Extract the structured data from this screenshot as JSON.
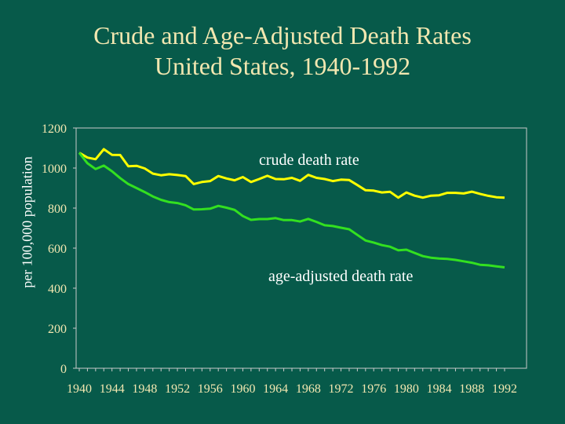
{
  "chart_data": {
    "type": "line",
    "title": "Crude and Age-Adjusted Death Rates",
    "subtitle": "United States, 1940-1992",
    "xlabel": "",
    "ylabel": "per 100,000 population",
    "xlim": [
      1940,
      1992
    ],
    "ylim": [
      0,
      1200
    ],
    "xticks": [
      1940,
      1944,
      1948,
      1952,
      1956,
      1960,
      1964,
      1968,
      1972,
      1976,
      1980,
      1984,
      1988,
      1992
    ],
    "yticks": [
      0,
      200,
      400,
      600,
      800,
      1000,
      1200
    ],
    "grid": false,
    "legend": "none",
    "annotations": [
      {
        "text": "crude death rate",
        "series": "crude death rate"
      },
      {
        "text": "age-adjusted death rate",
        "series": "age-adjusted death rate"
      }
    ],
    "series": [
      {
        "name": "crude death rate",
        "color": "#ffff00",
        "x": [
          1940,
          1941,
          1942,
          1943,
          1944,
          1945,
          1946,
          1947,
          1948,
          1949,
          1950,
          1951,
          1952,
          1953,
          1954,
          1955,
          1956,
          1957,
          1958,
          1959,
          1960,
          1961,
          1962,
          1963,
          1964,
          1965,
          1966,
          1967,
          1968,
          1969,
          1970,
          1971,
          1972,
          1973,
          1974,
          1975,
          1976,
          1977,
          1978,
          1979,
          1980,
          1981,
          1982,
          1983,
          1984,
          1985,
          1986,
          1987,
          1988,
          1989,
          1990,
          1991,
          1992
        ],
        "values": [
          1076,
          1052,
          1044,
          1094,
          1066,
          1065,
          1009,
          1011,
          998,
          972,
          964,
          969,
          965,
          960,
          920,
          930,
          935,
          960,
          948,
          939,
          955,
          930,
          945,
          961,
          945,
          944,
          951,
          936,
          966,
          951,
          945,
          935,
          942,
          940,
          915,
          889,
          887,
          878,
          881,
          852,
          878,
          862,
          852,
          862,
          864,
          876,
          876,
          873,
          882,
          871,
          861,
          854,
          852
        ]
      },
      {
        "name": "age-adjusted death rate",
        "color": "#33e020",
        "x": [
          1940,
          1941,
          1942,
          1943,
          1944,
          1945,
          1946,
          1947,
          1948,
          1949,
          1950,
          1951,
          1952,
          1953,
          1954,
          1955,
          1956,
          1957,
          1958,
          1959,
          1960,
          1961,
          1962,
          1963,
          1964,
          1965,
          1966,
          1967,
          1968,
          1969,
          1970,
          1971,
          1972,
          1973,
          1974,
          1975,
          1976,
          1977,
          1978,
          1979,
          1980,
          1981,
          1982,
          1983,
          1984,
          1985,
          1986,
          1987,
          1988,
          1989,
          1990,
          1991,
          1992
        ],
        "values": [
          1076,
          1024,
          995,
          1012,
          984,
          950,
          920,
          900,
          880,
          858,
          841,
          830,
          825,
          814,
          793,
          794,
          797,
          811,
          802,
          791,
          760,
          741,
          745,
          745,
          750,
          740,
          740,
          733,
          746,
          731,
          714,
          710,
          702,
          694,
          666,
          638,
          628,
          615,
          607,
          589,
          592,
          576,
          560,
          552,
          548,
          546,
          541,
          534,
          527,
          517,
          514,
          509,
          504
        ]
      }
    ]
  }
}
